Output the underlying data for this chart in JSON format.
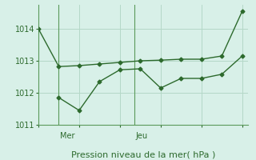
{
  "line1_x": [
    0,
    1,
    2,
    3,
    4,
    5,
    6,
    7,
    8,
    9,
    10
  ],
  "line1_y": [
    1014.0,
    1012.82,
    1012.85,
    1012.9,
    1012.95,
    1013.0,
    1013.02,
    1013.05,
    1013.05,
    1013.15,
    1014.55
  ],
  "line2_x": [
    1,
    2,
    3,
    4,
    5,
    6,
    7,
    8,
    9,
    10
  ],
  "line2_y": [
    1011.85,
    1011.45,
    1012.35,
    1012.72,
    1012.75,
    1012.15,
    1012.45,
    1012.45,
    1012.58,
    1013.15
  ],
  "line_color": "#2d6a2d",
  "marker": "D",
  "marker_size": 2.5,
  "linewidth": 1.0,
  "ylim": [
    1011.0,
    1014.75
  ],
  "yticks": [
    1011,
    1012,
    1013,
    1014
  ],
  "xlim": [
    0,
    10.3
  ],
  "mer_x": 1.0,
  "jeu_x": 4.7,
  "xlabel": "Pression niveau de la mer( hPa )",
  "xlabel_fontsize": 8,
  "tick_fontsize": 7,
  "day_fontsize": 7,
  "bg_color": "#d8f0e8",
  "grid_color": "#b4d8c8",
  "spine_color": "#5a9a5a"
}
